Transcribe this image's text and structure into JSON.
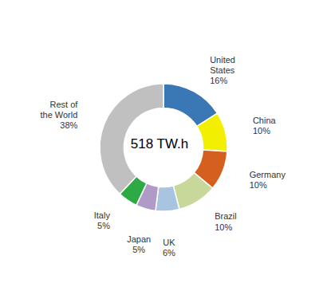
{
  "chart_data": {
    "type": "pie",
    "categories": [
      "United\nStates",
      "China",
      "Germany",
      "Brazil",
      "UK",
      "Japan",
      "Italy",
      "Rest of\nthe World"
    ],
    "values": [
      16,
      10,
      10,
      10,
      6,
      5,
      5,
      38
    ],
    "value_labels": [
      "16%",
      "10%",
      "10%",
      "10%",
      "6%",
      "5%",
      "5%",
      "38%"
    ],
    "colors": [
      "#3a78b5",
      "#f2f000",
      "#d45f1e",
      "#c8d89a",
      "#a8c4e0",
      "#b09ac8",
      "#2eaa44",
      "#c0c0c0"
    ],
    "annotations": [
      "518 TW.h"
    ],
    "data_labels": true
  }
}
